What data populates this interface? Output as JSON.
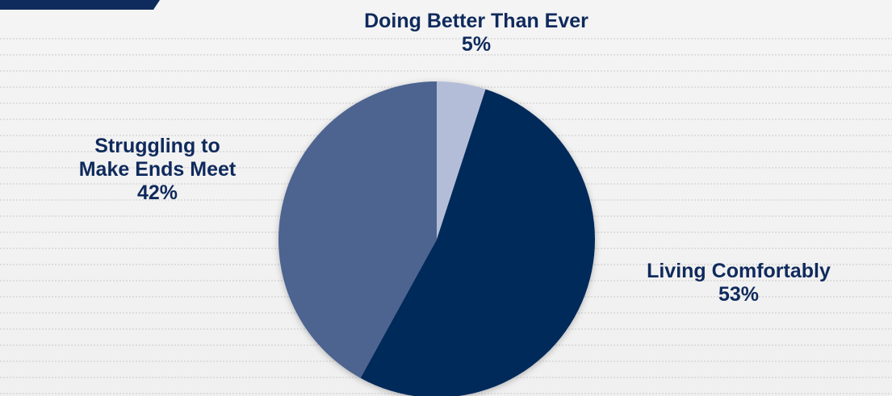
{
  "chart_data": {
    "type": "pie",
    "categories": [
      "Doing Better Than Ever",
      "Living Comfortably",
      "Struggling to Make Ends Meet"
    ],
    "values": [
      5,
      53,
      42
    ],
    "value_labels": [
      "5%",
      "53%",
      "42%"
    ],
    "label_lines": [
      [
        "Doing Better Than Ever"
      ],
      [
        "Living Comfortably"
      ],
      [
        "Struggling to",
        "Make Ends Meet"
      ]
    ],
    "colors": [
      "#b4bdd8",
      "#00295a",
      "#4d6490"
    ],
    "start": "12 o'clock",
    "direction": "clockwise",
    "legend": "none"
  },
  "style": {
    "label_color": "#0f2a5c",
    "background": "#f2f2f2",
    "corner_tab_color": "#0f2a5c"
  }
}
